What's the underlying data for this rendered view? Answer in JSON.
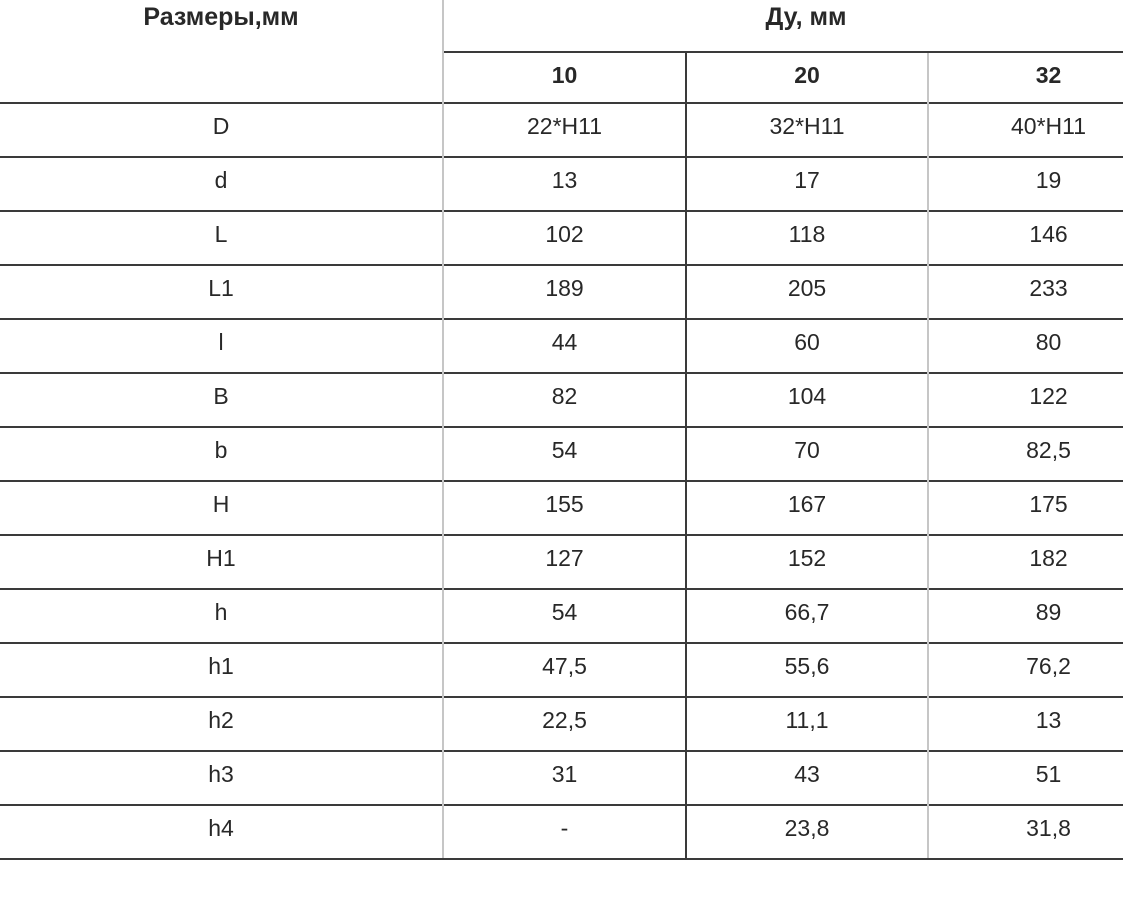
{
  "chart_data": {
    "type": "table",
    "corner_header": "Размеры,мм",
    "group_header": "Ду, мм",
    "columns": [
      "10",
      "20",
      "32"
    ],
    "rows": [
      {
        "label": "D",
        "values": [
          "22*H11",
          "32*H11",
          "40*H11"
        ]
      },
      {
        "label": "d",
        "values": [
          "13",
          "17",
          "19"
        ]
      },
      {
        "label": "L",
        "values": [
          "102",
          "118",
          "146"
        ]
      },
      {
        "label": "L1",
        "values": [
          "189",
          "205",
          "233"
        ]
      },
      {
        "label": "l",
        "values": [
          "44",
          "60",
          "80"
        ]
      },
      {
        "label": "B",
        "values": [
          "82",
          "104",
          "122"
        ]
      },
      {
        "label": "b",
        "values": [
          "54",
          "70",
          "82,5"
        ]
      },
      {
        "label": "H",
        "values": [
          "155",
          "167",
          "175"
        ]
      },
      {
        "label": "H1",
        "values": [
          "127",
          "152",
          "182"
        ]
      },
      {
        "label": "h",
        "values": [
          "54",
          "66,7",
          "89"
        ]
      },
      {
        "label": "h1",
        "values": [
          "47,5",
          "55,6",
          "76,2"
        ]
      },
      {
        "label": "h2",
        "values": [
          "22,5",
          "11,1",
          "13"
        ]
      },
      {
        "label": "h3",
        "values": [
          "31",
          "43",
          "51"
        ]
      },
      {
        "label": "h4",
        "values": [
          "-",
          "23,8",
          "31,8"
        ]
      }
    ],
    "layout_hints": {
      "grid": "horizontal rules full width; vertical rules only between columns",
      "legend_position": "none"
    },
    "colors": {
      "grid_dark": "#3a3a3a",
      "grid_light": "#c6c6c6",
      "text": "#282828",
      "background": "#ffffff"
    }
  }
}
